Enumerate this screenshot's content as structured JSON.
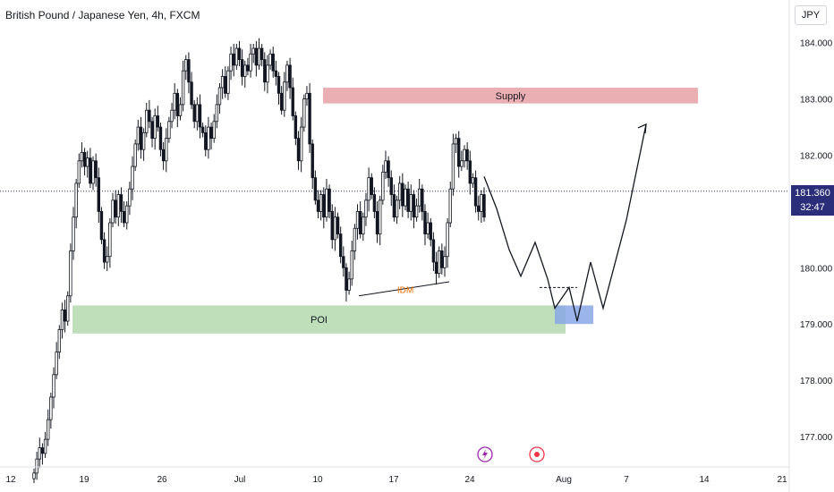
{
  "header": {
    "title": "British Pound / Japanese Yen, 4h, FXCM",
    "currency": "JPY"
  },
  "price_tag": {
    "price": "181.360",
    "countdown": "32:47"
  },
  "chart_data": {
    "type": "candlestick",
    "ylim": [
      176.3,
      184.6
    ],
    "y_ticks": [
      "184.000",
      "183.000",
      "182.000",
      "181.000",
      "180.000",
      "179.000",
      "178.000",
      "177.000"
    ],
    "x_ticks": [
      "12",
      "19",
      "26",
      "Jul",
      "10",
      "17",
      "24",
      "Aug",
      "7",
      "14",
      "21"
    ],
    "current_price": 181.36,
    "zones": [
      {
        "label": "Supply",
        "low": 182.92,
        "high": 183.2,
        "color": "#e8a6aa"
      },
      {
        "label": "POI",
        "low": 178.83,
        "high": 179.33,
        "color": "#b7dcb2"
      }
    ],
    "annotations": [
      {
        "label": "IDM",
        "color": "#ef6c00"
      }
    ],
    "projection_path": [
      181.62,
      181.05,
      180.32,
      179.85,
      180.45,
      179.8,
      179.28,
      179.65,
      179.05,
      180.1,
      179.28,
      180.85,
      182.55
    ],
    "candles_close": [
      176.35,
      176.6,
      176.8,
      176.7,
      176.95,
      177.3,
      177.7,
      178.1,
      178.5,
      178.9,
      179.25,
      179.05,
      179.5,
      180.3,
      180.9,
      181.5,
      181.9,
      182.05,
      181.8,
      181.95,
      181.5,
      181.9,
      181.6,
      181.0,
      180.5,
      180.1,
      180.2,
      180.8,
      181.2,
      180.9,
      181.3,
      181.0,
      180.8,
      181.1,
      181.4,
      181.8,
      182.2,
      182.5,
      182.1,
      182.4,
      182.8,
      182.6,
      182.3,
      182.7,
      182.5,
      182.1,
      181.9,
      182.3,
      182.6,
      182.8,
      183.1,
      182.7,
      182.9,
      183.5,
      183.7,
      183.3,
      182.9,
      182.6,
      182.9,
      182.5,
      182.4,
      182.1,
      182.5,
      182.3,
      182.6,
      182.9,
      183.2,
      183.4,
      183.1,
      183.5,
      183.8,
      183.6,
      183.9,
      183.7,
      183.4,
      183.6,
      183.5,
      183.8,
      183.9,
      183.6,
      183.9,
      183.7,
      183.3,
      183.6,
      183.8,
      183.5,
      183.4,
      183.1,
      182.8,
      183.3,
      183.6,
      183.2,
      182.7,
      182.3,
      181.9,
      182.5,
      183.0,
      183.1,
      182.2,
      181.6,
      181.2,
      181.0,
      181.3,
      180.9,
      181.4,
      181.0,
      180.5,
      180.9,
      180.6,
      180.2,
      180.0,
      179.6,
      179.8,
      180.3,
      180.7,
      181.0,
      180.6,
      180.9,
      181.2,
      181.6,
      181.3,
      181.0,
      180.6,
      181.2,
      181.7,
      181.9,
      181.6,
      181.3,
      180.9,
      181.2,
      181.5,
      181.1,
      181.4,
      181.0,
      181.3,
      180.9,
      181.1,
      181.4,
      181.0,
      180.6,
      180.8,
      180.5,
      180.1,
      179.9,
      180.3,
      180.0,
      180.2,
      180.8,
      181.4,
      182.2,
      182.3,
      181.8,
      181.9,
      182.1,
      181.9,
      181.5,
      181.6,
      181.1,
      181.0,
      181.3,
      180.9
    ]
  }
}
